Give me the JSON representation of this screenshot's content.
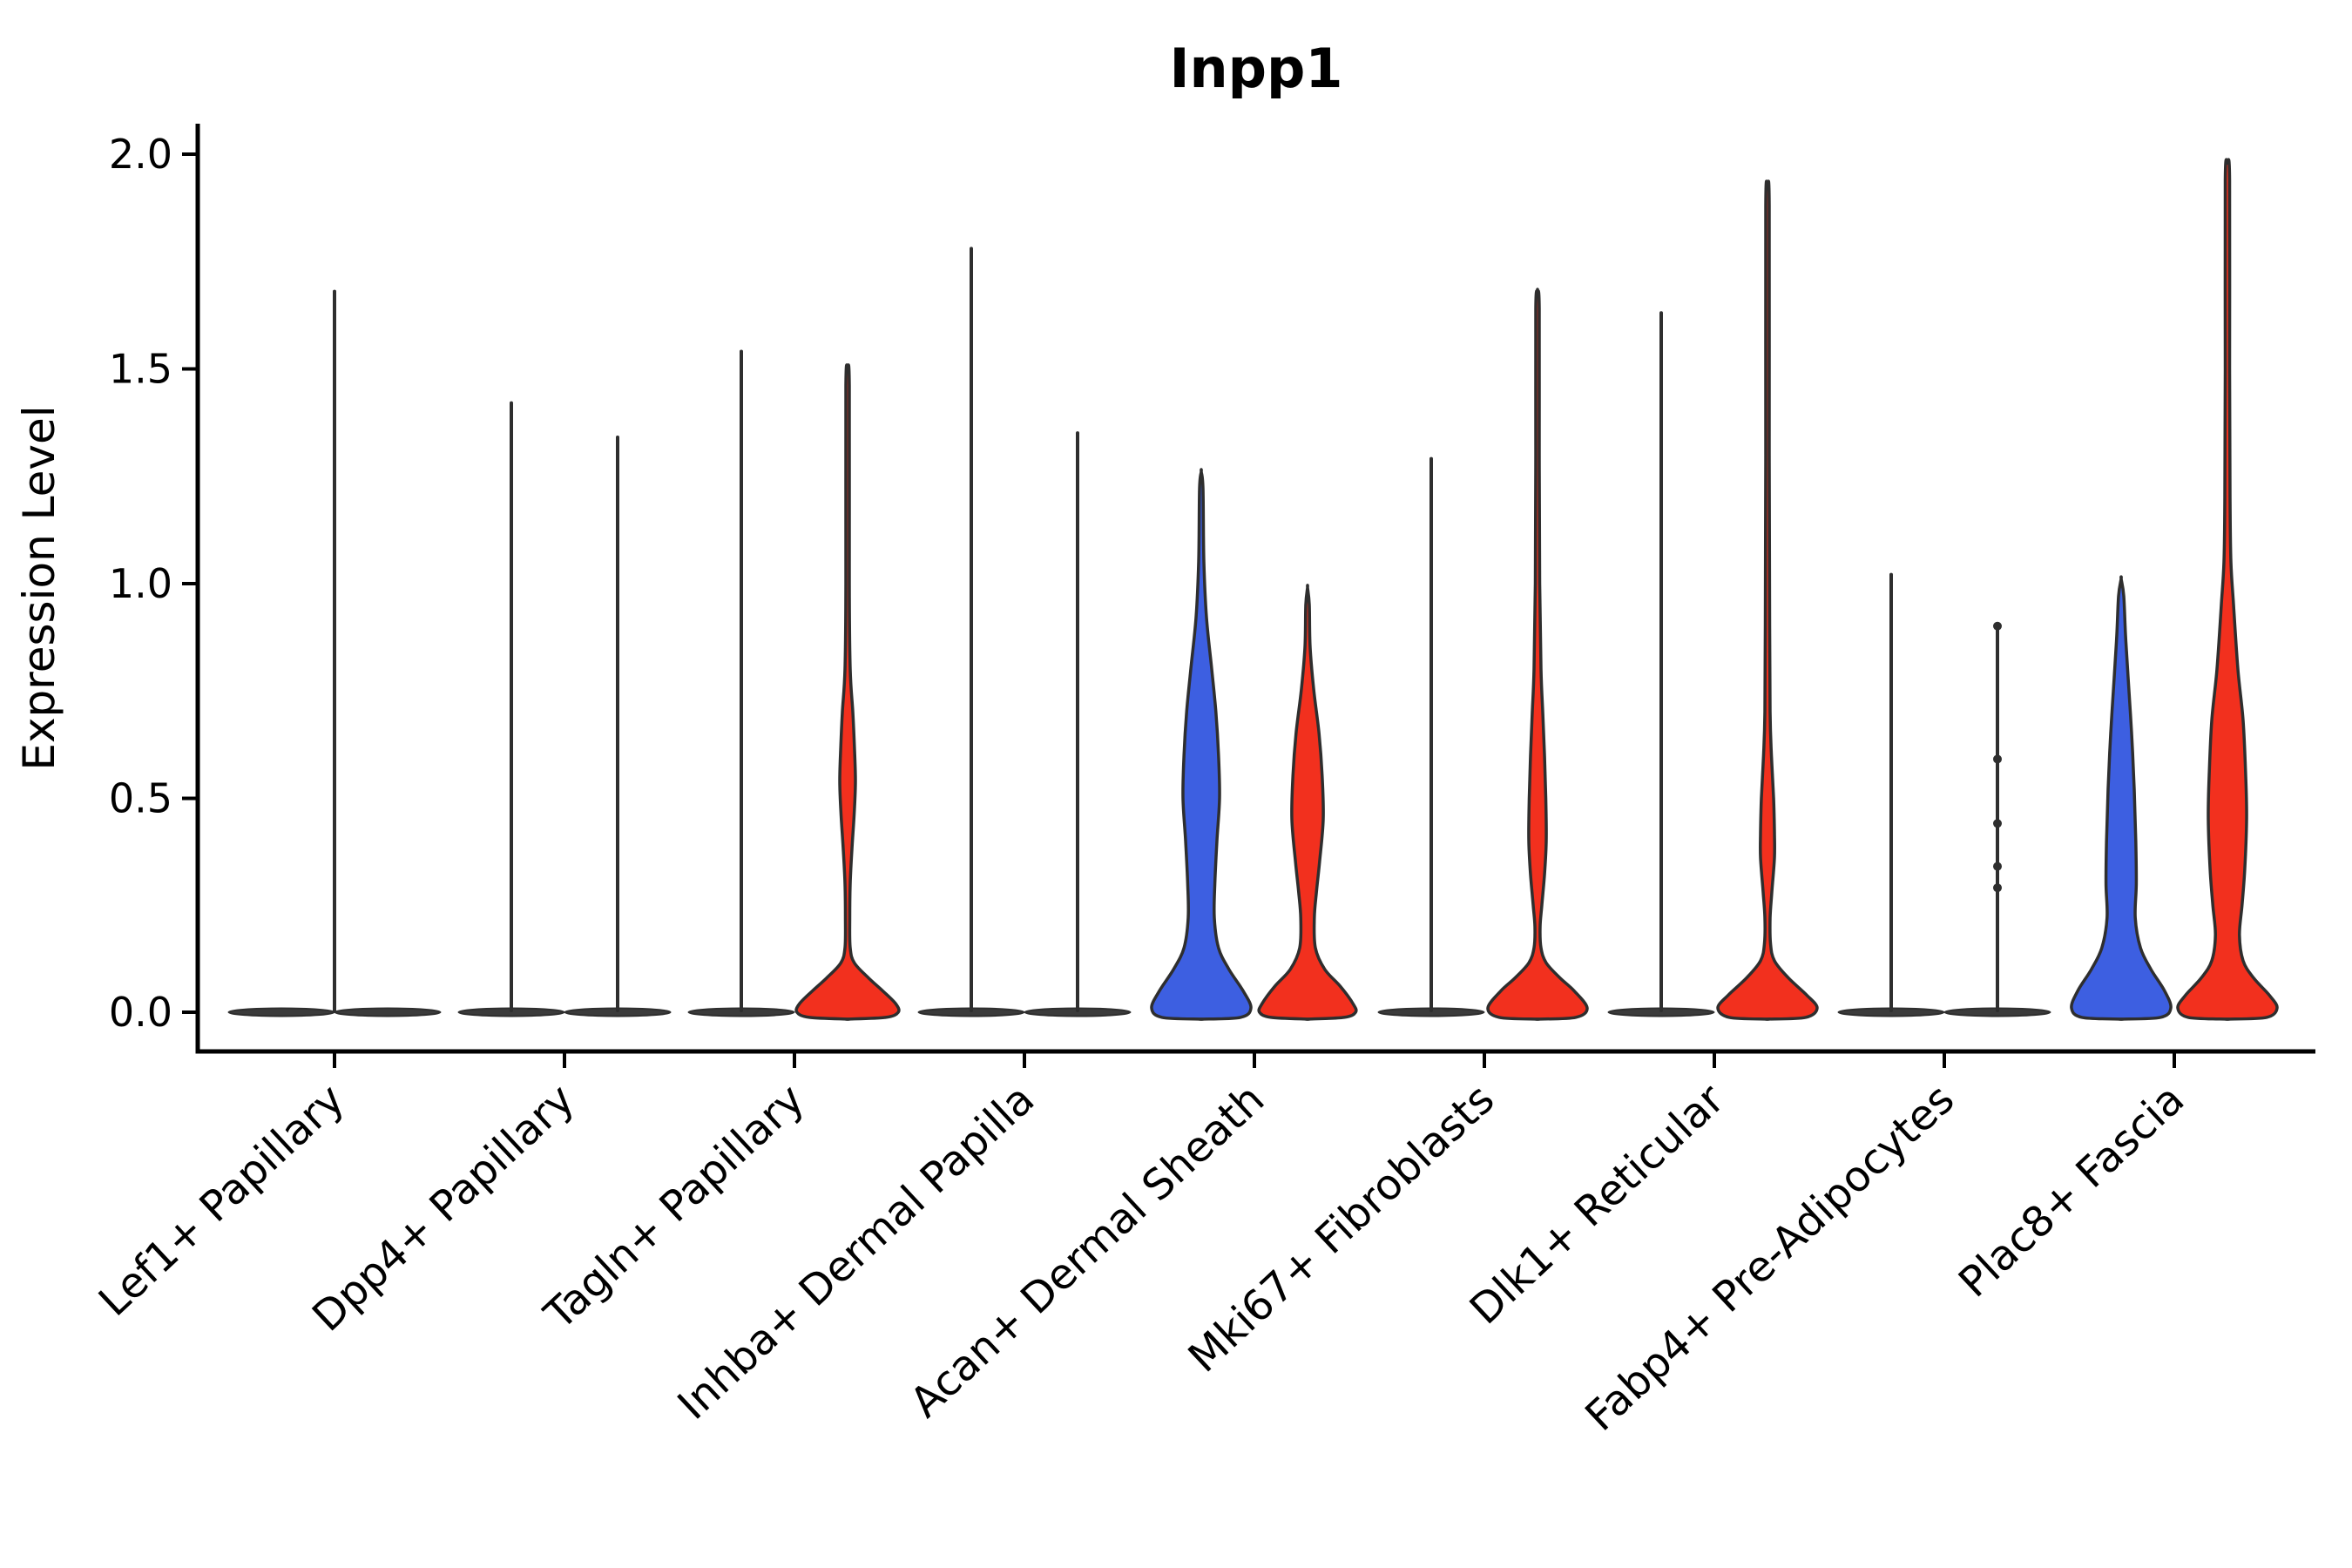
{
  "title": "Inpp1",
  "axes": {
    "ylabel": "Expression Level",
    "yticks": [
      "2.0",
      "1.5",
      "1.0",
      "0.5",
      "0.0"
    ],
    "ytick_values": [
      2.0,
      1.5,
      1.0,
      0.5,
      0.0
    ]
  },
  "style": {
    "blue": "#3D5FE1",
    "red": "#F2301E",
    "outline": "#2E2E2E",
    "pancake_fill": "#3B3B3B",
    "text_color": "#000000",
    "background": "#FFFFFF"
  },
  "chart_data": {
    "type": "violin",
    "title": "Inpp1",
    "xlabel": "",
    "ylabel": "Expression Level",
    "ylim": [
      0.0,
      2.07
    ],
    "grid": false,
    "legend": "none",
    "categories": [
      "Lef1+ Papillary",
      "Dpp4+ Papillary",
      "Tagln+ Papillary",
      "Inhba+ Dermal Papilla",
      "Acan+ Dermal Sheath",
      "Mki67+ Fibroblasts",
      "Dlk1+ Reticular",
      "Fabp4+ Pre-Adipocytes",
      "Plac8+ Fascia"
    ],
    "series": [
      {
        "name": "condition-blue",
        "color": "#3D5FE1"
      },
      {
        "name": "condition-red",
        "color": "#F2301E"
      }
    ],
    "groups": [
      {
        "category": "Lef1+ Papillary",
        "violins": [
          {
            "position": "left",
            "kind": "flat",
            "max": 0.0
          },
          {
            "position": "right",
            "kind": "flat",
            "max": 0.0
          },
          {
            "position": "center",
            "kind": "spike",
            "pancake": false,
            "max": 1.68
          }
        ]
      },
      {
        "category": "Dpp4+ Papillary",
        "violins": [
          {
            "position": "left",
            "kind": "spike",
            "max": 1.42
          },
          {
            "position": "right",
            "kind": "spike",
            "max": 1.34
          }
        ]
      },
      {
        "category": "Tagln+ Papillary",
        "violins": [
          {
            "position": "left",
            "kind": "spike",
            "max": 1.54
          },
          {
            "position": "right",
            "kind": "body",
            "color": "red",
            "max": 1.5,
            "profile": [
              [
                1.5,
                0
              ],
              [
                1.46,
                0.033
              ],
              [
                1.0,
                0.033
              ],
              [
                0.8,
                0.05
              ],
              [
                0.7,
                0.1
              ],
              [
                0.62,
                0.13
              ],
              [
                0.54,
                0.15
              ],
              [
                0.46,
                0.125
              ],
              [
                0.38,
                0.083
              ],
              [
                0.3,
                0.05
              ],
              [
                0.22,
                0.042
              ],
              [
                0.15,
                0.05
              ],
              [
                0.115,
                0.13
              ],
              [
                0.08,
                0.4
              ],
              [
                0.05,
                0.67
              ],
              [
                0.02,
                0.92
              ],
              [
                0.0,
                0.97
              ],
              [
                -0.012,
                0.73
              ],
              [
                -0.016,
                0
              ]
            ]
          }
        ]
      },
      {
        "category": "Inhba+ Dermal Papilla",
        "violins": [
          {
            "position": "left",
            "kind": "spike",
            "max": 1.78
          },
          {
            "position": "right",
            "kind": "spike",
            "max": 1.35
          }
        ]
      },
      {
        "category": "Acan+ Dermal Sheath",
        "violins": [
          {
            "position": "left",
            "kind": "body",
            "color": "blue",
            "max": 1.26,
            "profile": [
              [
                1.26,
                0
              ],
              [
                1.22,
                0.033
              ],
              [
                1.05,
                0.05
              ],
              [
                0.92,
                0.1
              ],
              [
                0.8,
                0.2
              ],
              [
                0.7,
                0.28
              ],
              [
                0.6,
                0.33
              ],
              [
                0.5,
                0.35
              ],
              [
                0.4,
                0.3
              ],
              [
                0.3,
                0.26
              ],
              [
                0.22,
                0.25
              ],
              [
                0.15,
                0.33
              ],
              [
                0.1,
                0.53
              ],
              [
                0.05,
                0.8
              ],
              [
                0.01,
                0.95
              ],
              [
                -0.012,
                0.75
              ],
              [
                -0.016,
                0
              ]
            ]
          },
          {
            "position": "right",
            "kind": "body",
            "color": "red",
            "max": 0.99,
            "profile": [
              [
                0.99,
                0
              ],
              [
                0.95,
                0.033
              ],
              [
                0.85,
                0.05
              ],
              [
                0.75,
                0.12
              ],
              [
                0.65,
                0.22
              ],
              [
                0.55,
                0.28
              ],
              [
                0.45,
                0.3
              ],
              [
                0.35,
                0.23
              ],
              [
                0.28,
                0.17
              ],
              [
                0.22,
                0.13
              ],
              [
                0.15,
                0.15
              ],
              [
                0.1,
                0.33
              ],
              [
                0.06,
                0.63
              ],
              [
                0.02,
                0.87
              ],
              [
                0.0,
                0.92
              ],
              [
                -0.012,
                0.7
              ],
              [
                -0.016,
                0
              ]
            ]
          }
        ]
      },
      {
        "category": "Mki67+ Fibroblasts",
        "violins": [
          {
            "position": "left",
            "kind": "spike",
            "max": 1.29
          },
          {
            "position": "right",
            "kind": "body",
            "color": "red",
            "max": 1.68,
            "profile": [
              [
                1.68,
                0
              ],
              [
                1.64,
                0.033
              ],
              [
                1.3,
                0.033
              ],
              [
                1.0,
                0.042
              ],
              [
                0.8,
                0.067
              ],
              [
                0.7,
                0.1
              ],
              [
                0.6,
                0.133
              ],
              [
                0.5,
                0.158
              ],
              [
                0.4,
                0.167
              ],
              [
                0.32,
                0.133
              ],
              [
                0.25,
                0.083
              ],
              [
                0.2,
                0.05
              ],
              [
                0.15,
                0.067
              ],
              [
                0.115,
                0.167
              ],
              [
                0.08,
                0.43
              ],
              [
                0.05,
                0.7
              ],
              [
                0.01,
                0.95
              ],
              [
                -0.012,
                0.73
              ],
              [
                -0.016,
                0
              ]
            ]
          }
        ]
      },
      {
        "category": "Dlk1+ Reticular",
        "violins": [
          {
            "position": "left",
            "kind": "spike",
            "max": 1.63
          },
          {
            "position": "right",
            "kind": "body",
            "color": "red",
            "max": 1.92,
            "profile": [
              [
                1.92,
                0
              ],
              [
                1.88,
                0.033
              ],
              [
                1.3,
                0.033
              ],
              [
                0.9,
                0.042
              ],
              [
                0.7,
                0.05
              ],
              [
                0.6,
                0.075
              ],
              [
                0.5,
                0.117
              ],
              [
                0.42,
                0.133
              ],
              [
                0.36,
                0.133
              ],
              [
                0.28,
                0.083
              ],
              [
                0.22,
                0.05
              ],
              [
                0.16,
                0.058
              ],
              [
                0.12,
                0.133
              ],
              [
                0.08,
                0.4
              ],
              [
                0.04,
                0.75
              ],
              [
                0.01,
                0.95
              ],
              [
                -0.012,
                0.73
              ],
              [
                -0.016,
                0
              ]
            ]
          }
        ]
      },
      {
        "category": "Fabp4+ Pre-Adipocytes",
        "violins": [
          {
            "position": "left",
            "kind": "spike",
            "max": 1.02
          },
          {
            "position": "right",
            "kind": "spike",
            "max": 0.9,
            "beads": [
              0.9,
              0.59,
              0.44,
              0.34,
              0.29
            ]
          }
        ]
      },
      {
        "category": "Plac8+ Fascia",
        "violins": [
          {
            "position": "left",
            "kind": "body",
            "color": "blue",
            "max": 1.01,
            "profile": [
              [
                1.01,
                0
              ],
              [
                0.97,
                0.05
              ],
              [
                0.88,
                0.083
              ],
              [
                0.78,
                0.133
              ],
              [
                0.65,
                0.2
              ],
              [
                0.52,
                0.25
              ],
              [
                0.4,
                0.28
              ],
              [
                0.3,
                0.29
              ],
              [
                0.22,
                0.27
              ],
              [
                0.15,
                0.37
              ],
              [
                0.1,
                0.57
              ],
              [
                0.05,
                0.83
              ],
              [
                0.01,
                0.95
              ],
              [
                -0.012,
                0.75
              ],
              [
                -0.016,
                0
              ]
            ]
          },
          {
            "position": "right",
            "kind": "body",
            "color": "red",
            "max": 1.98,
            "profile": [
              [
                1.98,
                0
              ],
              [
                1.94,
                0.042
              ],
              [
                1.5,
                0.042
              ],
              [
                1.2,
                0.05
              ],
              [
                1.05,
                0.067
              ],
              [
                0.95,
                0.117
              ],
              [
                0.8,
                0.2
              ],
              [
                0.68,
                0.3
              ],
              [
                0.55,
                0.35
              ],
              [
                0.45,
                0.367
              ],
              [
                0.33,
                0.33
              ],
              [
                0.25,
                0.28
              ],
              [
                0.18,
                0.23
              ],
              [
                0.12,
                0.3
              ],
              [
                0.08,
                0.5
              ],
              [
                0.04,
                0.8
              ],
              [
                0.01,
                0.95
              ],
              [
                -0.012,
                0.75
              ],
              [
                -0.016,
                0
              ]
            ]
          }
        ]
      }
    ]
  }
}
